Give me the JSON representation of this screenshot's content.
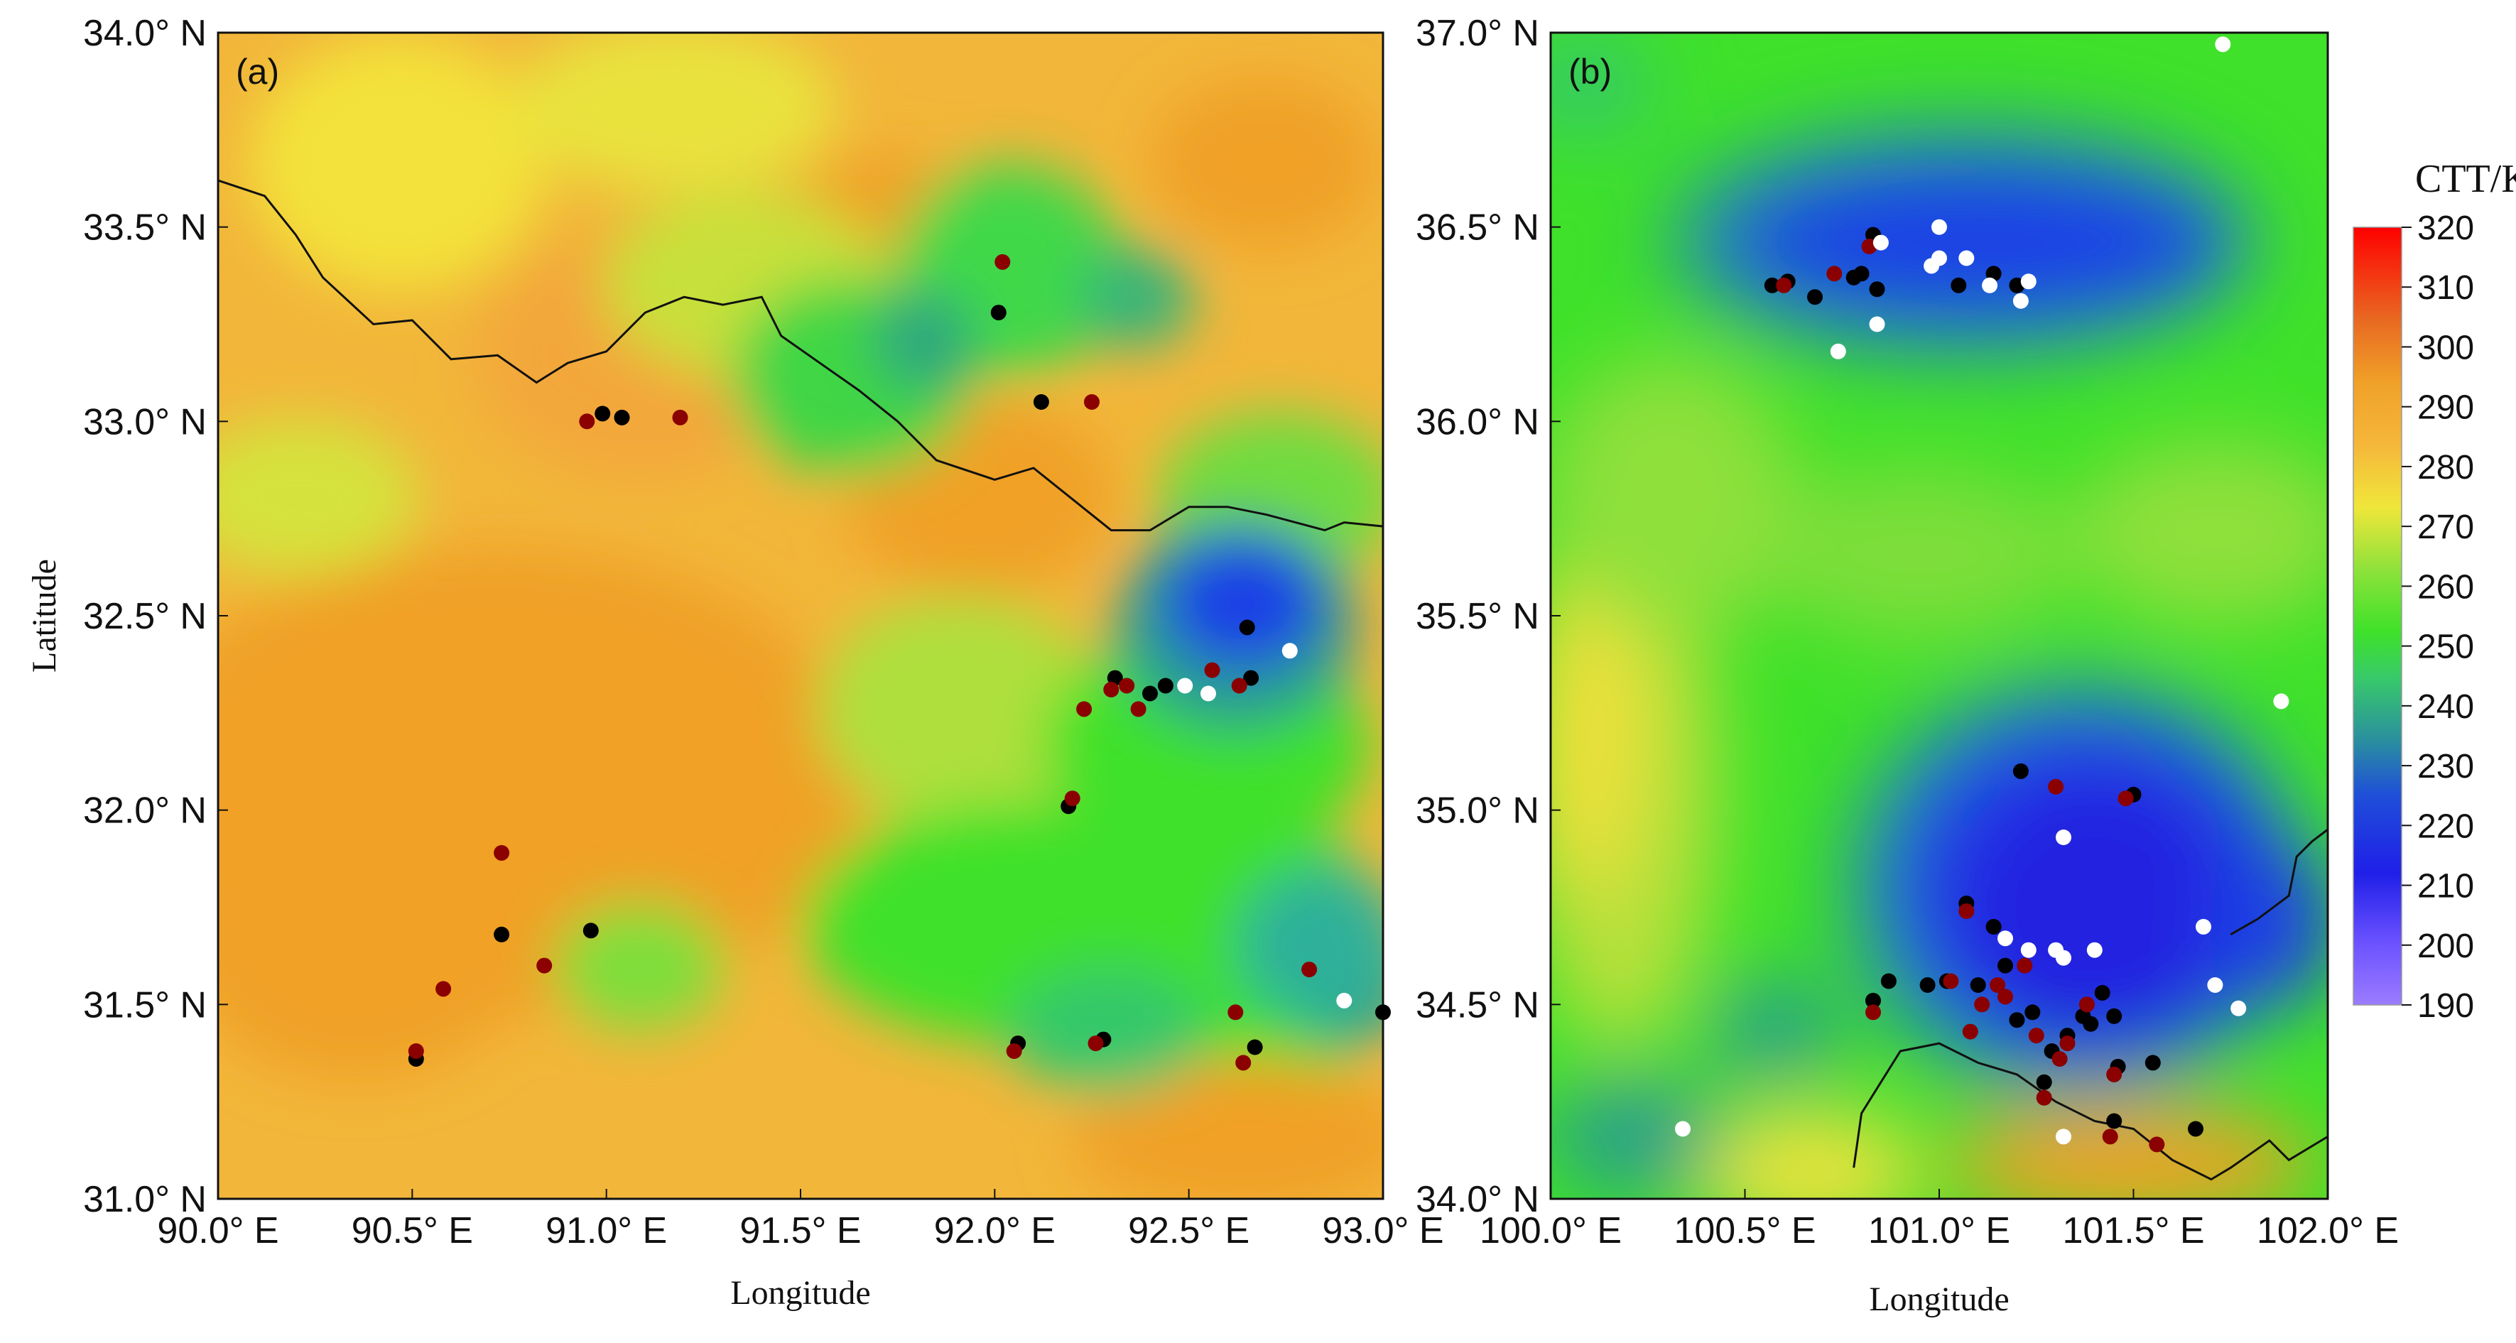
{
  "colors": {
    "orange": "#f0a128",
    "orange_light": "#f5b73a",
    "yellow": "#f2e23a",
    "green": "#3fe12a",
    "green_dark": "#35c85b",
    "teal": "#2a9d8f",
    "blue": "#1e3fe6",
    "blue_deep": "#2020d8",
    "marker_black": "#000000",
    "marker_red": "#8b0000",
    "marker_white": "#ffffff"
  },
  "chart_data": [
    {
      "panel_label": "(a)",
      "type": "map-scatter",
      "xlabel": "Longitude",
      "ylabel": "Latitude",
      "xlim": [
        90.0,
        93.0
      ],
      "ylim": [
        31.0,
        34.0
      ],
      "xticks": [
        90.0,
        90.5,
        91.0,
        91.5,
        92.0,
        92.5,
        93.0
      ],
      "yticks": [
        31.0,
        31.5,
        32.0,
        32.5,
        33.0,
        33.5,
        34.0
      ],
      "xtick_labels": [
        "90.0° E",
        "90.5° E",
        "91.0° E",
        "91.5° E",
        "92.0° E",
        "92.5° E",
        "93.0° E"
      ],
      "ytick_labels": [
        "31.0° N",
        "31.5° N",
        "32.0° N",
        "32.5° N",
        "33.0° N",
        "33.5° N",
        "34.0° N"
      ],
      "border": [
        [
          90.0,
          33.62
        ],
        [
          90.12,
          33.58
        ],
        [
          90.2,
          33.48
        ],
        [
          90.27,
          33.37
        ],
        [
          90.4,
          33.25
        ],
        [
          90.5,
          33.26
        ],
        [
          90.6,
          33.16
        ],
        [
          90.72,
          33.17
        ],
        [
          90.82,
          33.1
        ],
        [
          90.9,
          33.15
        ],
        [
          91.0,
          33.18
        ],
        [
          91.1,
          33.28
        ],
        [
          91.2,
          33.32
        ],
        [
          91.3,
          33.3
        ],
        [
          91.4,
          33.32
        ],
        [
          91.45,
          33.22
        ],
        [
          91.55,
          33.15
        ],
        [
          91.65,
          33.08
        ],
        [
          91.75,
          33.0
        ],
        [
          91.85,
          32.9
        ],
        [
          92.0,
          32.85
        ],
        [
          92.1,
          32.88
        ],
        [
          92.2,
          32.8
        ],
        [
          92.3,
          32.72
        ],
        [
          92.4,
          32.72
        ],
        [
          92.5,
          32.78
        ],
        [
          92.6,
          32.78
        ],
        [
          92.7,
          32.76
        ],
        [
          92.85,
          32.72
        ],
        [
          92.9,
          32.74
        ],
        [
          93.0,
          32.73
        ]
      ],
      "series": [
        {
          "name": "black",
          "color": "#000000",
          "points": [
            [
              90.51,
              31.36
            ],
            [
              90.73,
              31.68
            ],
            [
              90.96,
              31.69
            ],
            [
              90.99,
              33.02
            ],
            [
              91.04,
              33.01
            ],
            [
              92.01,
              33.28
            ],
            [
              92.12,
              33.05
            ],
            [
              92.19,
              32.01
            ],
            [
              92.06,
              31.4
            ],
            [
              92.28,
              31.41
            ],
            [
              92.31,
              32.34
            ],
            [
              92.4,
              32.3
            ],
            [
              92.44,
              32.32
            ],
            [
              92.65,
              32.47
            ],
            [
              92.66,
              32.34
            ],
            [
              92.67,
              31.39
            ],
            [
              93.0,
              31.48
            ]
          ]
        },
        {
          "name": "dark-red",
          "color": "#8b0000",
          "points": [
            [
              90.51,
              31.38
            ],
            [
              90.58,
              31.54
            ],
            [
              90.73,
              31.89
            ],
            [
              90.84,
              31.6
            ],
            [
              90.95,
              33.0
            ],
            [
              91.19,
              33.01
            ],
            [
              92.02,
              33.41
            ],
            [
              92.25,
              33.05
            ],
            [
              92.2,
              32.03
            ],
            [
              92.23,
              32.26
            ],
            [
              92.3,
              32.31
            ],
            [
              92.34,
              32.32
            ],
            [
              92.37,
              32.26
            ],
            [
              92.56,
              32.36
            ],
            [
              92.63,
              32.32
            ],
            [
              92.05,
              31.38
            ],
            [
              92.26,
              31.4
            ],
            [
              92.62,
              31.48
            ],
            [
              92.64,
              31.35
            ],
            [
              92.81,
              31.59
            ]
          ]
        },
        {
          "name": "white",
          "color": "#ffffff",
          "points": [
            [
              92.49,
              32.32
            ],
            [
              92.55,
              32.3
            ],
            [
              92.76,
              32.41
            ],
            [
              92.9,
              31.51
            ]
          ]
        }
      ]
    },
    {
      "panel_label": "(b)",
      "type": "map-scatter",
      "xlabel": "Longitude",
      "ylabel": "",
      "xlim": [
        100.0,
        102.0
      ],
      "ylim": [
        34.0,
        37.0
      ],
      "xticks": [
        100.0,
        100.5,
        101.0,
        101.5,
        102.0
      ],
      "yticks": [
        34.0,
        34.5,
        35.0,
        35.5,
        36.0,
        36.5,
        37.0
      ],
      "xtick_labels": [
        "100.0° E",
        "100.5° E",
        "101.0° E",
        "101.5° E",
        "102.0° E"
      ],
      "ytick_labels": [
        "34.0° N",
        "34.5° N",
        "35.0° N",
        "35.5° N",
        "36.0° N",
        "36.5° N",
        "37.0° N"
      ],
      "border": [
        [
          100.78,
          34.08
        ],
        [
          100.8,
          34.22
        ],
        [
          100.85,
          34.3
        ],
        [
          100.9,
          34.38
        ],
        [
          101.0,
          34.4
        ],
        [
          101.1,
          34.35
        ],
        [
          101.2,
          34.32
        ],
        [
          101.3,
          34.25
        ],
        [
          101.4,
          34.2
        ],
        [
          101.5,
          34.18
        ],
        [
          101.6,
          34.1
        ],
        [
          101.7,
          34.05
        ],
        [
          101.75,
          34.08
        ],
        [
          101.85,
          34.15
        ],
        [
          101.9,
          34.1
        ],
        [
          102.0,
          34.16
        ]
      ],
      "border2": [
        [
          101.75,
          34.68
        ],
        [
          101.82,
          34.72
        ],
        [
          101.9,
          34.78
        ],
        [
          101.92,
          34.88
        ],
        [
          101.96,
          34.92
        ],
        [
          102.0,
          34.95
        ]
      ],
      "series": [
        {
          "name": "black",
          "color": "#000000",
          "points": [
            [
              100.57,
              36.35
            ],
            [
              100.61,
              36.36
            ],
            [
              100.68,
              36.32
            ],
            [
              100.78,
              36.37
            ],
            [
              100.8,
              36.38
            ],
            [
              100.83,
              36.48
            ],
            [
              100.84,
              36.34
            ],
            [
              101.05,
              36.35
            ],
            [
              101.14,
              36.38
            ],
            [
              101.2,
              36.35
            ],
            [
              101.21,
              35.1
            ],
            [
              101.5,
              35.04
            ],
            [
              100.83,
              34.51
            ],
            [
              100.87,
              34.56
            ],
            [
              100.97,
              34.55
            ],
            [
              101.02,
              34.56
            ],
            [
              101.07,
              34.76
            ],
            [
              101.1,
              34.55
            ],
            [
              101.14,
              34.7
            ],
            [
              101.17,
              34.6
            ],
            [
              101.2,
              34.46
            ],
            [
              101.24,
              34.48
            ],
            [
              101.27,
              34.3
            ],
            [
              101.29,
              34.38
            ],
            [
              101.33,
              34.42
            ],
            [
              101.37,
              34.47
            ],
            [
              101.39,
              34.45
            ],
            [
              101.42,
              34.53
            ],
            [
              101.45,
              34.47
            ],
            [
              101.46,
              34.34
            ],
            [
              101.45,
              34.2
            ],
            [
              101.55,
              34.35
            ],
            [
              101.66,
              34.18
            ]
          ]
        },
        {
          "name": "dark-red",
          "color": "#8b0000",
          "points": [
            [
              100.6,
              36.35
            ],
            [
              100.73,
              36.38
            ],
            [
              100.82,
              36.45
            ],
            [
              101.3,
              35.06
            ],
            [
              101.48,
              35.03
            ],
            [
              100.83,
              34.48
            ],
            [
              101.03,
              34.56
            ],
            [
              101.07,
              34.74
            ],
            [
              101.08,
              34.43
            ],
            [
              101.11,
              34.5
            ],
            [
              101.15,
              34.55
            ],
            [
              101.17,
              34.52
            ],
            [
              101.22,
              34.6
            ],
            [
              101.25,
              34.42
            ],
            [
              101.27,
              34.26
            ],
            [
              101.31,
              34.36
            ],
            [
              101.33,
              34.4
            ],
            [
              101.38,
              34.5
            ],
            [
              101.45,
              34.32
            ],
            [
              101.44,
              34.16
            ],
            [
              101.56,
              34.14
            ]
          ]
        },
        {
          "name": "white",
          "color": "#ffffff",
          "points": [
            [
              100.74,
              36.18
            ],
            [
              100.84,
              36.25
            ],
            [
              100.85,
              36.46
            ],
            [
              100.98,
              36.4
            ],
            [
              101.0,
              36.42
            ],
            [
              101.0,
              36.5
            ],
            [
              101.07,
              36.42
            ],
            [
              101.13,
              36.35
            ],
            [
              101.21,
              36.31
            ],
            [
              101.23,
              36.36
            ],
            [
              101.73,
              36.97
            ],
            [
              101.32,
              34.93
            ],
            [
              101.88,
              35.28
            ],
            [
              101.17,
              34.67
            ],
            [
              101.23,
              34.64
            ],
            [
              101.3,
              34.64
            ],
            [
              101.32,
              34.62
            ],
            [
              101.4,
              34.64
            ],
            [
              101.68,
              34.7
            ],
            [
              101.71,
              34.55
            ],
            [
              101.77,
              34.49
            ],
            [
              100.34,
              34.18
            ],
            [
              101.32,
              34.16
            ]
          ]
        }
      ]
    }
  ],
  "colorbar": {
    "title": "CTT/K",
    "ticks": [
      190,
      200,
      210,
      220,
      230,
      240,
      250,
      260,
      270,
      280,
      290,
      300,
      310,
      320
    ],
    "range": [
      190,
      320
    ]
  }
}
